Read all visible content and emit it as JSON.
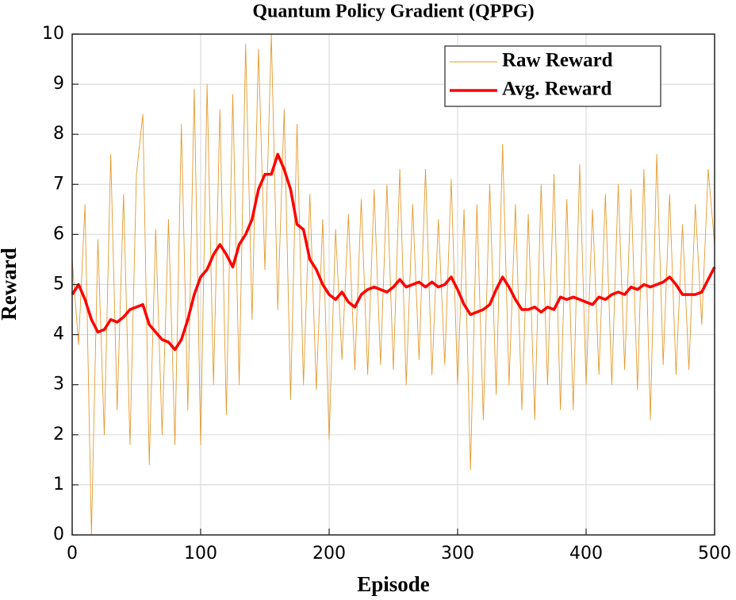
{
  "chart_data": {
    "type": "line",
    "title": "Quantum Policy Gradient (QPPG)",
    "x_label": "Episode",
    "y_label": "Reward",
    "x": [
      0,
      5,
      10,
      15,
      20,
      25,
      30,
      35,
      40,
      45,
      50,
      55,
      60,
      65,
      70,
      75,
      80,
      85,
      90,
      95,
      100,
      105,
      110,
      115,
      120,
      125,
      130,
      135,
      140,
      145,
      150,
      155,
      160,
      165,
      170,
      175,
      180,
      185,
      190,
      195,
      200,
      205,
      210,
      215,
      220,
      225,
      230,
      235,
      240,
      245,
      250,
      255,
      260,
      265,
      270,
      275,
      280,
      285,
      290,
      295,
      300,
      305,
      310,
      315,
      320,
      325,
      330,
      335,
      340,
      345,
      350,
      355,
      360,
      365,
      370,
      375,
      380,
      385,
      390,
      395,
      400,
      405,
      410,
      415,
      420,
      425,
      430,
      435,
      440,
      445,
      450,
      455,
      460,
      465,
      470,
      475,
      480,
      485,
      490,
      495,
      500
    ],
    "series": [
      {
        "name": "Raw Reward",
        "color": "#e69a2e",
        "values": [
          5.5,
          3.8,
          6.6,
          0.0,
          5.9,
          2.0,
          7.6,
          2.5,
          6.8,
          1.8,
          7.2,
          8.4,
          1.4,
          6.1,
          2.0,
          6.3,
          1.8,
          8.2,
          2.5,
          8.9,
          1.8,
          9.0,
          3.0,
          8.5,
          2.4,
          8.8,
          3.0,
          9.8,
          4.3,
          9.7,
          5.3,
          10.0,
          4.5,
          8.5,
          2.7,
          8.2,
          3.0,
          6.8,
          2.9,
          6.3,
          1.9,
          6.1,
          3.5,
          6.4,
          3.3,
          6.7,
          3.2,
          6.9,
          3.4,
          7.0,
          3.3,
          7.3,
          3.0,
          6.6,
          3.5,
          7.3,
          3.2,
          6.3,
          3.4,
          7.1,
          3.0,
          6.5,
          1.3,
          6.6,
          2.3,
          7.0,
          2.8,
          7.8,
          3.0,
          6.6,
          2.5,
          6.4,
          2.3,
          7.0,
          3.0,
          7.2,
          2.5,
          6.7,
          2.5,
          7.4,
          3.0,
          6.5,
          3.2,
          6.8,
          3.0,
          7.0,
          3.3,
          6.9,
          2.9,
          7.3,
          2.3,
          7.6,
          3.4,
          6.8,
          3.2,
          6.2,
          3.3,
          6.6,
          4.2,
          7.3,
          5.8
        ]
      },
      {
        "name": "Avg. Reward",
        "color": "#ff0000",
        "values": [
          4.8,
          5.0,
          4.7,
          4.3,
          4.05,
          4.1,
          4.3,
          4.25,
          4.35,
          4.5,
          4.55,
          4.6,
          4.2,
          4.05,
          3.9,
          3.85,
          3.7,
          3.9,
          4.3,
          4.8,
          5.15,
          5.3,
          5.6,
          5.8,
          5.6,
          5.35,
          5.8,
          6.0,
          6.3,
          6.9,
          7.2,
          7.2,
          7.6,
          7.3,
          6.9,
          6.2,
          6.1,
          5.5,
          5.3,
          5.0,
          4.8,
          4.7,
          4.85,
          4.65,
          4.55,
          4.8,
          4.9,
          4.95,
          4.9,
          4.85,
          4.95,
          5.1,
          4.95,
          5.0,
          5.05,
          4.95,
          5.05,
          4.95,
          5.0,
          5.15,
          4.9,
          4.6,
          4.4,
          4.45,
          4.5,
          4.6,
          4.9,
          5.15,
          4.95,
          4.7,
          4.5,
          4.5,
          4.55,
          4.45,
          4.55,
          4.5,
          4.75,
          4.7,
          4.75,
          4.7,
          4.65,
          4.6,
          4.75,
          4.7,
          4.8,
          4.85,
          4.8,
          4.95,
          4.9,
          5.0,
          4.95,
          5.0,
          5.05,
          5.15,
          5.0,
          4.8,
          4.8,
          4.8,
          4.85,
          5.1,
          5.35
        ]
      }
    ],
    "xlim": [
      0,
      500
    ],
    "xticks": [
      0,
      100,
      200,
      300,
      400,
      500
    ],
    "ylim": [
      0,
      10
    ],
    "yticks": [
      0,
      1,
      2,
      3,
      4,
      5,
      6,
      7,
      8,
      9,
      10
    ],
    "grid": true,
    "legend": "upper right"
  }
}
